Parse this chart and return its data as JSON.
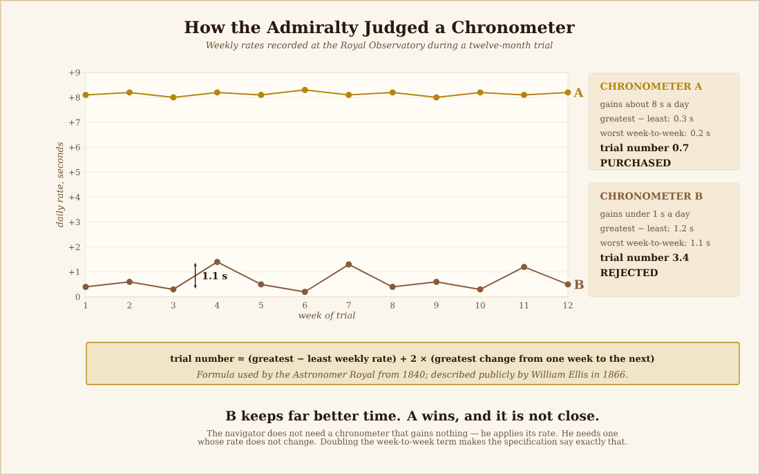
{
  "chart_data": {
    "type": "line",
    "title": "How the Admiralty Judged a Chronometer",
    "subtitle": "Weekly rates recorded at the Royal Observatory during a twelve-month trial",
    "xlabel": "week of trial",
    "ylabel": "daily rate, seconds",
    "x": [
      1,
      2,
      3,
      4,
      5,
      6,
      7,
      8,
      9,
      10,
      11,
      12
    ],
    "series": [
      {
        "name": "A",
        "color": "#b5850f",
        "values": [
          8.1,
          8.2,
          8.0,
          8.2,
          8.1,
          8.3,
          8.1,
          8.2,
          8.0,
          8.2,
          8.1,
          8.2
        ]
      },
      {
        "name": "B",
        "color": "#8b5a3c",
        "values": [
          0.4,
          0.6,
          0.3,
          1.4,
          0.5,
          0.2,
          1.3,
          0.4,
          0.6,
          0.3,
          1.2,
          0.5
        ]
      }
    ],
    "xlim": [
      1,
      12
    ],
    "xticks": [
      1,
      2,
      3,
      4,
      5,
      6,
      7,
      8,
      9,
      10,
      11,
      12
    ],
    "ylim": [
      0,
      9
    ],
    "yticks": [
      0,
      {
        "value": 1,
        "label": "+1"
      },
      {
        "value": 2,
        "label": "+2"
      },
      {
        "value": 3,
        "label": "+3"
      },
      {
        "value": 4,
        "label": "+4"
      },
      {
        "value": 5,
        "label": "+5"
      },
      {
        "value": 6,
        "label": "+6"
      },
      {
        "value": 7,
        "label": "+7"
      },
      {
        "value": 8,
        "label": "+8"
      },
      {
        "value": 9,
        "label": "+9"
      }
    ],
    "grid": "y",
    "legend": false,
    "marker": "circle",
    "line_style": "solid",
    "annotations": [
      "CHRONOMETER A",
      "gains about 8 s a day",
      "greatest − least:  0.3 s",
      "worst week-to-week:  0.2 s",
      "trial number  0.7",
      "PURCHASED",
      "CHRONOMETER B",
      "gains under 1 s a day",
      "greatest − least:  1.2 s",
      "worst week-to-week:  1.1 s",
      "trial number  3.4",
      "REJECTED",
      {
        "text": "1.1 s",
        "x": 3.5,
        "y": 0.85
      },
      "trial number  =  (greatest − least weekly rate)  +  2 × (greatest change from one week to the next)",
      "Formula used by the Astronomer Royal from 1840; described publicly by William Ellis in 1866.",
      "B keeps far better time. A wins, and it is not close.",
      "The navigator does not need a chronometer that gains nothing — he applies its rate. He needs one whose rate does not change. Doubling the week-to-week term makes the specification say exactly that."
    ]
  }
}
